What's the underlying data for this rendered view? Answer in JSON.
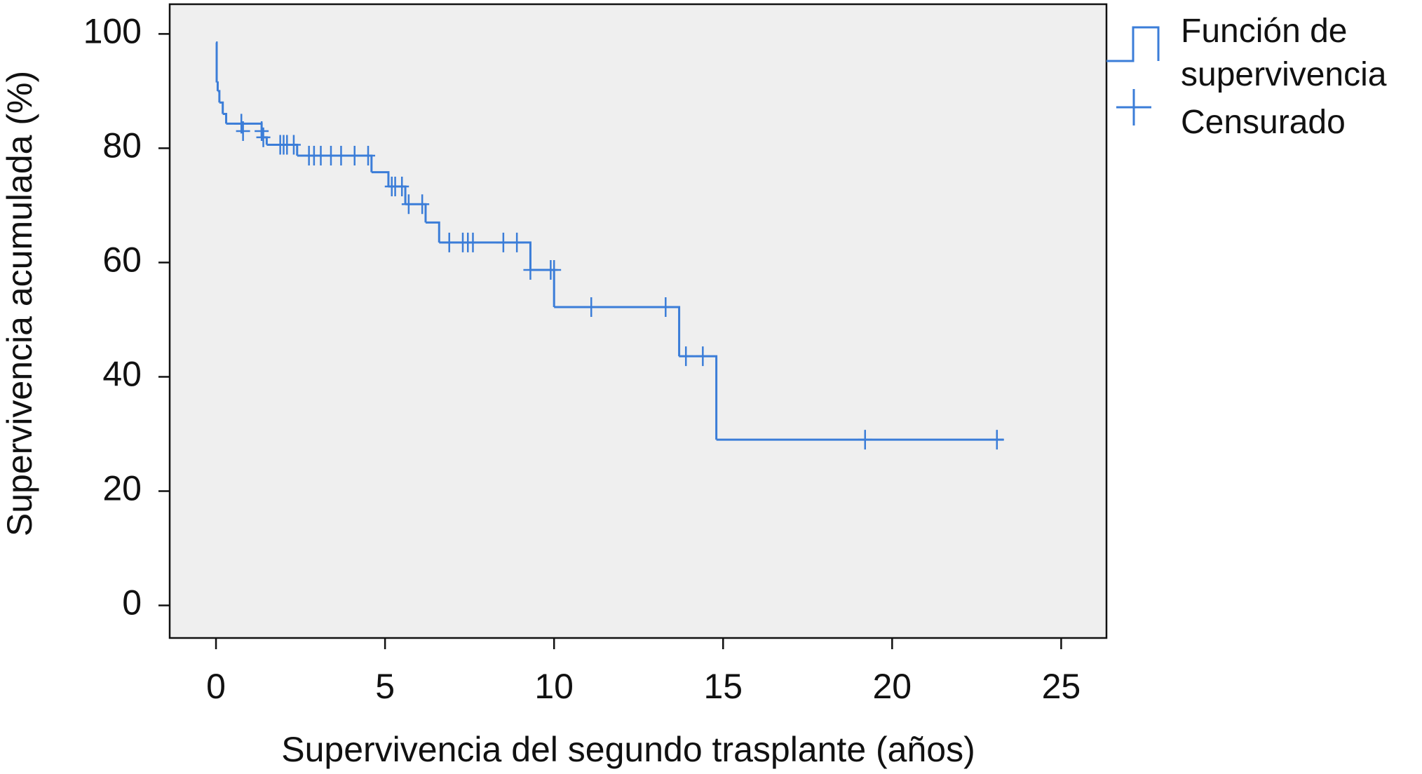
{
  "chart_data": {
    "type": "step",
    "x_label": "Supervivencia del segundo trasplante (años)",
    "y_label": "Supervivencia acumulada (%)",
    "xlim": [
      -1.37,
      26.34
    ],
    "ylim": [
      -5.7,
      105.2
    ],
    "xticks": [
      0,
      5,
      10,
      15,
      20,
      25
    ],
    "yticks": [
      0,
      20,
      40,
      60,
      80,
      100
    ],
    "background": "#efefef",
    "series": [
      {
        "name": "Función de supervivencia",
        "color": "#3b7dd8",
        "style": "step",
        "x": [
          0,
          0.02,
          0.05,
          0.1,
          0.2,
          0.3,
          1.35,
          1.5,
          2.4,
          4.6,
          5.1,
          5.6,
          6.2,
          6.6,
          9.3,
          10.0,
          13.7,
          14.8,
          23.3
        ],
        "values": [
          98.5,
          91.5,
          90,
          88,
          86,
          84.3,
          81.9,
          80.6,
          78.7,
          75.8,
          73.3,
          70.2,
          67,
          63.5,
          58.7,
          52.2,
          43.6,
          29,
          29
        ]
      },
      {
        "name": "Censurado",
        "color": "#3b7dd8",
        "style": "plus",
        "x": [
          0.75,
          0.8,
          1.35,
          1.4,
          1.9,
          2.0,
          2.1,
          2.3,
          2.75,
          2.9,
          3.1,
          3.4,
          3.7,
          4.1,
          4.5,
          5.2,
          5.3,
          5.5,
          5.7,
          6.1,
          6.9,
          7.3,
          7.45,
          7.6,
          8.5,
          8.9,
          9.3,
          9.9,
          10.0,
          11.1,
          13.3,
          13.9,
          14.4,
          19.2,
          23.1
        ],
        "values": [
          84.3,
          83,
          83,
          81.9,
          80.6,
          80.6,
          80.6,
          80.6,
          78.7,
          78.7,
          78.7,
          78.7,
          78.7,
          78.7,
          78.7,
          73.3,
          73.3,
          73.3,
          70.2,
          70.2,
          63.5,
          63.5,
          63.5,
          63.5,
          63.5,
          63.5,
          58.7,
          58.7,
          58.7,
          52.2,
          52.2,
          43.6,
          43.6,
          29,
          29
        ]
      }
    ]
  }
}
